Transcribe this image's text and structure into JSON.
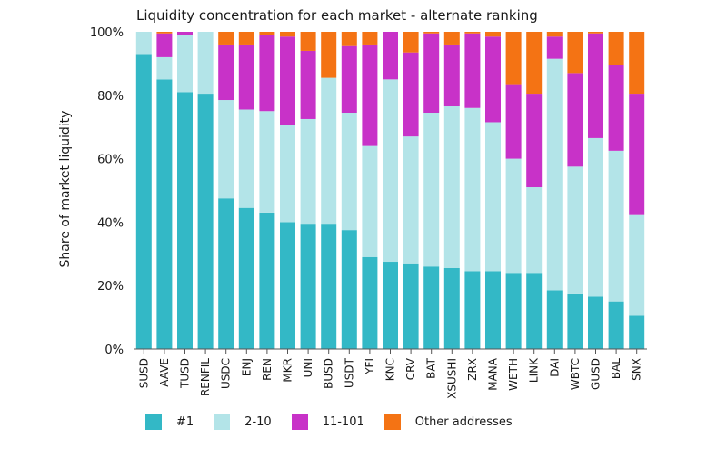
{
  "chart_data": {
    "type": "bar",
    "stacked": true,
    "title": "Liquidity concentration for each market - alternate ranking",
    "xlabel": "",
    "ylabel": "Share of market liquidity",
    "ylim": [
      0,
      100
    ],
    "yticks": [
      "0%",
      "20%",
      "40%",
      "60%",
      "80%",
      "100%"
    ],
    "ytick_values": [
      0,
      20,
      40,
      60,
      80,
      100
    ],
    "grid": false,
    "legend_position": "bottom",
    "categories": [
      "SUSD",
      "AAVE",
      "TUSD",
      "RENFIL",
      "USDC",
      "ENJ",
      "REN",
      "MKR",
      "UNI",
      "BUSD",
      "USDT",
      "YFI",
      "KNC",
      "CRV",
      "BAT",
      "XSUSHI",
      "ZRX",
      "MANA",
      "WETH",
      "LINK",
      "DAI",
      "WBTC",
      "GUSD",
      "BAL",
      "SNX"
    ],
    "series": [
      {
        "name": "#1",
        "color": "#33b8c6",
        "values": [
          93,
          85,
          81,
          80.5,
          47.5,
          44.5,
          43,
          40,
          39.5,
          39.5,
          37.5,
          29,
          27.5,
          27,
          26,
          25.5,
          24.5,
          24.5,
          24,
          24,
          18.5,
          17.5,
          16.5,
          15,
          10.5
        ]
      },
      {
        "name": "2-10",
        "color": "#b3e4e8",
        "values": [
          7,
          7,
          18,
          19.5,
          31,
          31,
          32,
          30.5,
          33,
          46,
          37,
          35,
          57.5,
          40,
          48.5,
          51,
          51.5,
          47,
          36,
          27,
          73,
          40,
          50,
          47.5,
          32
        ]
      },
      {
        "name": "11-101",
        "color": "#c832c8",
        "values": [
          0,
          7.5,
          1,
          0,
          17.5,
          20.5,
          24,
          28,
          21.5,
          0,
          21,
          32,
          15,
          26.5,
          25,
          19.5,
          23.5,
          27,
          23.5,
          29.5,
          7,
          29.5,
          33,
          27,
          38
        ]
      },
      {
        "name": "Other addresses",
        "color": "#f47314",
        "values": [
          0,
          0.5,
          0,
          0,
          4,
          4,
          1,
          1.5,
          6,
          14.5,
          4.5,
          4,
          0,
          6.5,
          0.5,
          4,
          0.5,
          1.5,
          16.5,
          19.5,
          1.5,
          13,
          0.5,
          10.5,
          19.5
        ]
      }
    ]
  }
}
